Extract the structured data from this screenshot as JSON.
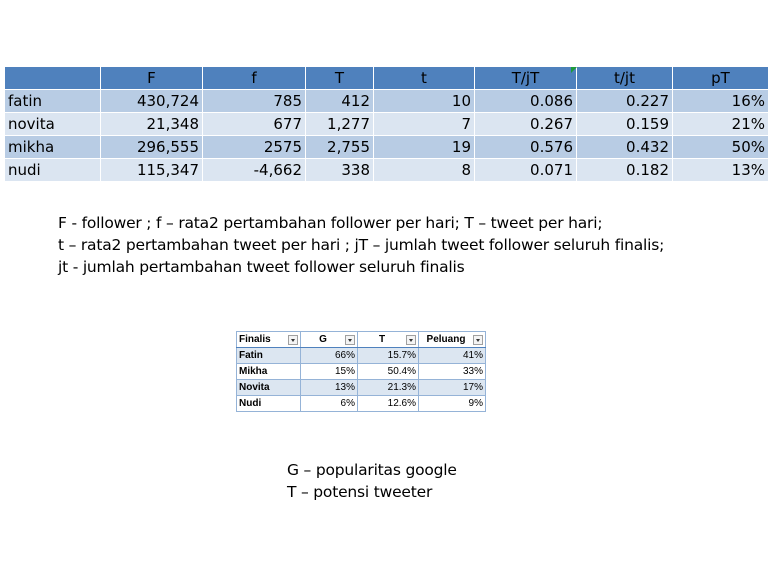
{
  "main_table": {
    "headers": [
      "",
      "F",
      "f",
      "T",
      "t",
      "T/jT",
      "t/jt",
      "pT"
    ],
    "rows": [
      [
        "fatin",
        "430,724",
        "785",
        "412",
        "10",
        "0.086",
        "0.227",
        "16%"
      ],
      [
        "novita",
        "21,348",
        "677",
        "1,277",
        "7",
        "0.267",
        "0.159",
        "21%"
      ],
      [
        "mikha",
        "296,555",
        "2575",
        "2,755",
        "19",
        "0.576",
        "0.432",
        "50%"
      ],
      [
        "nudi",
        "115,347",
        "-4,662",
        "338",
        "8",
        "0.071",
        "0.182",
        "13%"
      ]
    ]
  },
  "notes": [
    "F - follower ; f – rata2 pertambahan follower per hari; T – tweet per hari;",
    "t – rata2 pertambahan tweet per hari ; jT – jumlah tweet follower seluruh finalis;",
    "jt - jumlah pertambahan tweet follower seluruh finalis"
  ],
  "small_table": {
    "headers": [
      "Finalis",
      "G",
      "T",
      "Peluang"
    ],
    "rows": [
      [
        "Fatin",
        "66%",
        "15.7%",
        "41%"
      ],
      [
        "Mikha",
        "15%",
        "50.4%",
        "33%"
      ],
      [
        "Novita",
        "13%",
        "21.3%",
        "17%"
      ],
      [
        "Nudi",
        "6%",
        "12.6%",
        "9%"
      ]
    ]
  },
  "legend": [
    "G – popularitas google",
    "T – potensi tweeter"
  ],
  "colors": {
    "header_blue": "#4f81bd",
    "row_dark": "#b8cce4",
    "row_light": "#dbe5f1",
    "comment_marker": "#1e9b3a"
  }
}
